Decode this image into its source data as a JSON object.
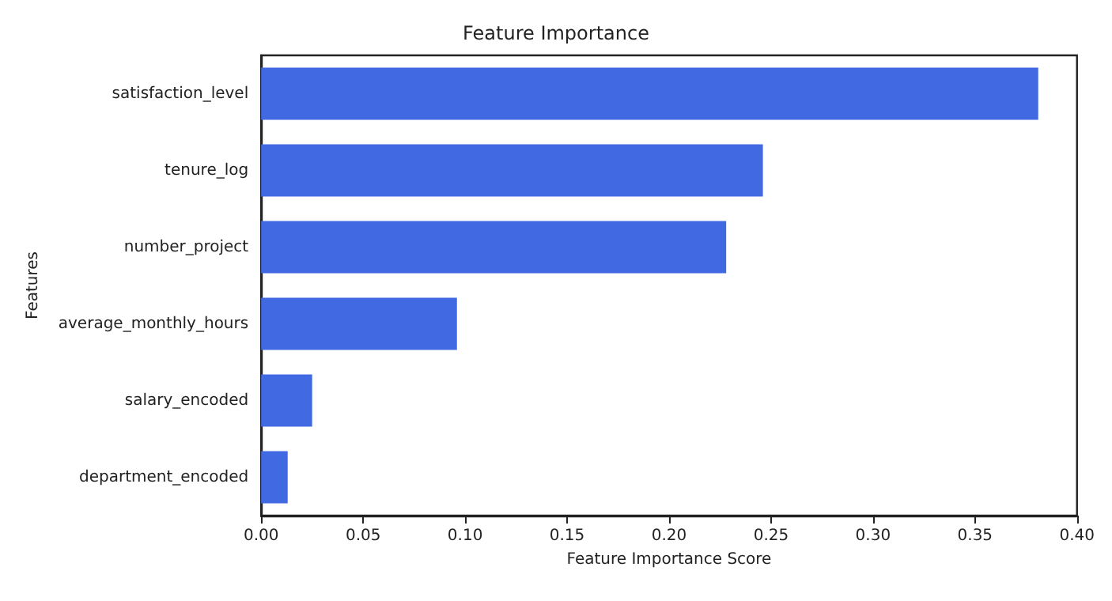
{
  "chart_data": {
    "type": "bar",
    "orientation": "horizontal",
    "title": "Feature Importance",
    "xlabel": "Feature Importance Score",
    "ylabel": "Features",
    "categories": [
      "satisfaction_level",
      "tenure_log",
      "number_project",
      "average_monthly_hours",
      "salary_encoded",
      "department_encoded"
    ],
    "values": [
      0.381,
      0.246,
      0.228,
      0.096,
      0.025,
      0.013
    ],
    "color": "#4169e1",
    "xlim": [
      0,
      0.4
    ],
    "xticks": [
      {
        "value": 0,
        "label": "0.00"
      },
      {
        "value": 0.05,
        "label": "0.05"
      },
      {
        "value": 0.1,
        "label": "0.10"
      },
      {
        "value": 0.15,
        "label": "0.15"
      },
      {
        "value": 0.2,
        "label": "0.20"
      },
      {
        "value": 0.25,
        "label": "0.25"
      },
      {
        "value": 0.3,
        "label": "0.30"
      },
      {
        "value": 0.35,
        "label": "0.35"
      },
      {
        "value": 0.4,
        "label": "0.40"
      }
    ],
    "grid": false
  }
}
